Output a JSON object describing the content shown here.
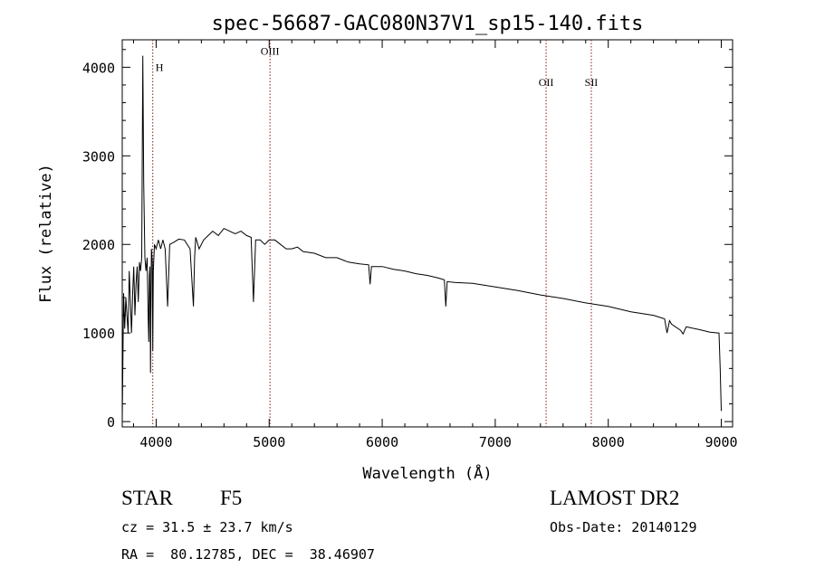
{
  "chart_data": {
    "type": "line",
    "title": "spec-56687-GAC080N37V1_sp15-140.fits",
    "xlabel": "Wavelength (Å)",
    "ylabel": "Flux (relative)",
    "xlim": [
      3700,
      9100
    ],
    "ylim": [
      -60,
      4310
    ],
    "xticks": [
      4000,
      5000,
      6000,
      7000,
      8000,
      9000
    ],
    "yticks": [
      0,
      1000,
      2000,
      3000,
      4000
    ],
    "xtick_labels": [
      "4000",
      "5000",
      "6000",
      "7000",
      "8000",
      "9000"
    ],
    "ytick_labels": [
      "0",
      "1000",
      "2000",
      "3000",
      "4000"
    ],
    "grid": false,
    "line_color": "#000000",
    "marker_color": "#8b1a1a",
    "lines": [
      {
        "label": "H",
        "x": 3970,
        "label_y": 4000
      },
      {
        "label": "OIII",
        "x": 5007,
        "label_y": 4180
      },
      {
        "label": "OII",
        "x": 7450,
        "label_y": 3830
      },
      {
        "label": "SII",
        "x": 7850,
        "label_y": 3830
      }
    ],
    "series": [
      {
        "x": [
          3700,
          3712,
          3722,
          3732,
          3742,
          3752,
          3762,
          3772,
          3782,
          3792,
          3802,
          3812,
          3822,
          3832,
          3842,
          3852,
          3862,
          3872,
          3882,
          3890,
          3900,
          3910,
          3920,
          3930,
          3935,
          3940,
          3945,
          3950,
          3958,
          3966,
          3970,
          3975,
          3985,
          4000,
          4020,
          4040,
          4060,
          4080,
          4101,
          4120,
          4150,
          4200,
          4250,
          4300,
          4330,
          4340,
          4350,
          4380,
          4420,
          4460,
          4500,
          4550,
          4600,
          4650,
          4700,
          4750,
          4800,
          4840,
          4861,
          4880,
          4920,
          4960,
          5000,
          5050,
          5100,
          5150,
          5200,
          5250,
          5300,
          5400,
          5500,
          5600,
          5700,
          5800,
          5880,
          5893,
          5905,
          6000,
          6100,
          6200,
          6300,
          6400,
          6500,
          6550,
          6563,
          6575,
          6650,
          6800,
          7000,
          7200,
          7400,
          7600,
          7800,
          8000,
          8200,
          8400,
          8498,
          8520,
          8542,
          8560,
          8640,
          8662,
          8690,
          8800,
          8900,
          8980,
          8990,
          9000
        ],
        "values": [
          0,
          1450,
          1050,
          1400,
          1200,
          1000,
          1700,
          1350,
          1000,
          1450,
          1750,
          1200,
          1550,
          1750,
          1350,
          1800,
          1700,
          1850,
          4130,
          2700,
          1850,
          1700,
          1850,
          1150,
          900,
          1650,
          1750,
          550,
          1950,
          1800,
          800,
          1700,
          2000,
          1950,
          2050,
          1950,
          2050,
          1950,
          1300,
          2000,
          2020,
          2060,
          2050,
          1950,
          1300,
          1850,
          2080,
          1950,
          2050,
          2100,
          2150,
          2100,
          2180,
          2150,
          2120,
          2150,
          2100,
          2080,
          1350,
          2050,
          2050,
          2000,
          2050,
          2050,
          2000,
          1950,
          1950,
          1970,
          1920,
          1900,
          1850,
          1850,
          1800,
          1780,
          1770,
          1550,
          1750,
          1750,
          1720,
          1700,
          1670,
          1650,
          1620,
          1600,
          1300,
          1580,
          1570,
          1560,
          1520,
          1480,
          1430,
          1390,
          1340,
          1300,
          1240,
          1200,
          1160,
          1000,
          1140,
          1100,
          1030,
          990,
          1070,
          1040,
          1010,
          1000,
          600,
          120
        ]
      }
    ]
  },
  "footer": {
    "object_class": "STAR",
    "subclass": "F5",
    "survey": "LAMOST DR2",
    "cz": "cz = 31.5 ± 23.7 km/s",
    "obs_date": "Obs-Date: 20140129",
    "coords": "RA =  80.12785, DEC =  38.46907"
  }
}
